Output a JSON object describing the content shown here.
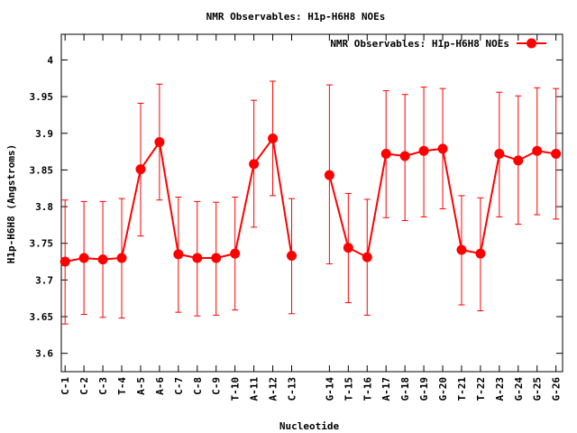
{
  "chart_data": {
    "type": "line",
    "title": "NMR Observables: H1p-H6H8 NOEs",
    "xlabel": "Nucleotide",
    "ylabel": "H1p-H6H8 (Angstroms)",
    "ylim": [
      3.575,
      4.035
    ],
    "yticks": [
      3.6,
      3.65,
      3.7,
      3.75,
      3.8,
      3.85,
      3.9,
      3.95,
      4
    ],
    "ytick_labels": [
      "3.6",
      "3.65",
      "3.7",
      "3.75",
      "3.8",
      "3.85",
      "3.9",
      "3.95",
      "4"
    ],
    "grid": false,
    "legend_position": "top-right",
    "categories": [
      "C-1",
      "C-2",
      "C-3",
      "T-4",
      "A-5",
      "A-6",
      "C-7",
      "C-8",
      "C-9",
      "T-10",
      "A-11",
      "A-12",
      "C-13",
      "G-14",
      "T-15",
      "T-16",
      "A-17",
      "G-18",
      "G-19",
      "G-20",
      "T-21",
      "T-22",
      "A-23",
      "G-24",
      "G-25",
      "G-26"
    ],
    "x": [
      1,
      2,
      3,
      4,
      5,
      6,
      7,
      8,
      9,
      10,
      11,
      12,
      13,
      15,
      16,
      17,
      18,
      19,
      20,
      21,
      22,
      23,
      24,
      25,
      26,
      27
    ],
    "series": [
      {
        "name": "NMR Observables: H1p-H6H8 NOEs",
        "color": "#ff0000",
        "segments": [
          [
            0,
            12
          ],
          [
            13,
            25
          ]
        ],
        "values": [
          3.725,
          3.73,
          3.728,
          3.73,
          3.851,
          3.888,
          3.735,
          3.73,
          3.73,
          3.736,
          3.858,
          3.893,
          3.733,
          3.843,
          3.744,
          3.731,
          3.872,
          3.869,
          3.876,
          3.879,
          3.741,
          3.736,
          3.872,
          3.863,
          3.876,
          3.872
        ],
        "err_low": [
          3.64,
          3.653,
          3.649,
          3.648,
          3.76,
          3.809,
          3.656,
          3.651,
          3.652,
          3.659,
          3.772,
          3.815,
          3.654,
          3.722,
          3.669,
          3.652,
          3.785,
          3.781,
          3.786,
          3.797,
          3.666,
          3.658,
          3.786,
          3.776,
          3.789,
          3.783
        ],
        "err_high": [
          3.809,
          3.807,
          3.807,
          3.811,
          3.941,
          3.967,
          3.813,
          3.807,
          3.806,
          3.813,
          3.945,
          3.971,
          3.811,
          3.966,
          3.818,
          3.81,
          3.958,
          3.953,
          3.963,
          3.961,
          3.815,
          3.812,
          3.956,
          3.951,
          3.962,
          3.961
        ]
      }
    ]
  }
}
